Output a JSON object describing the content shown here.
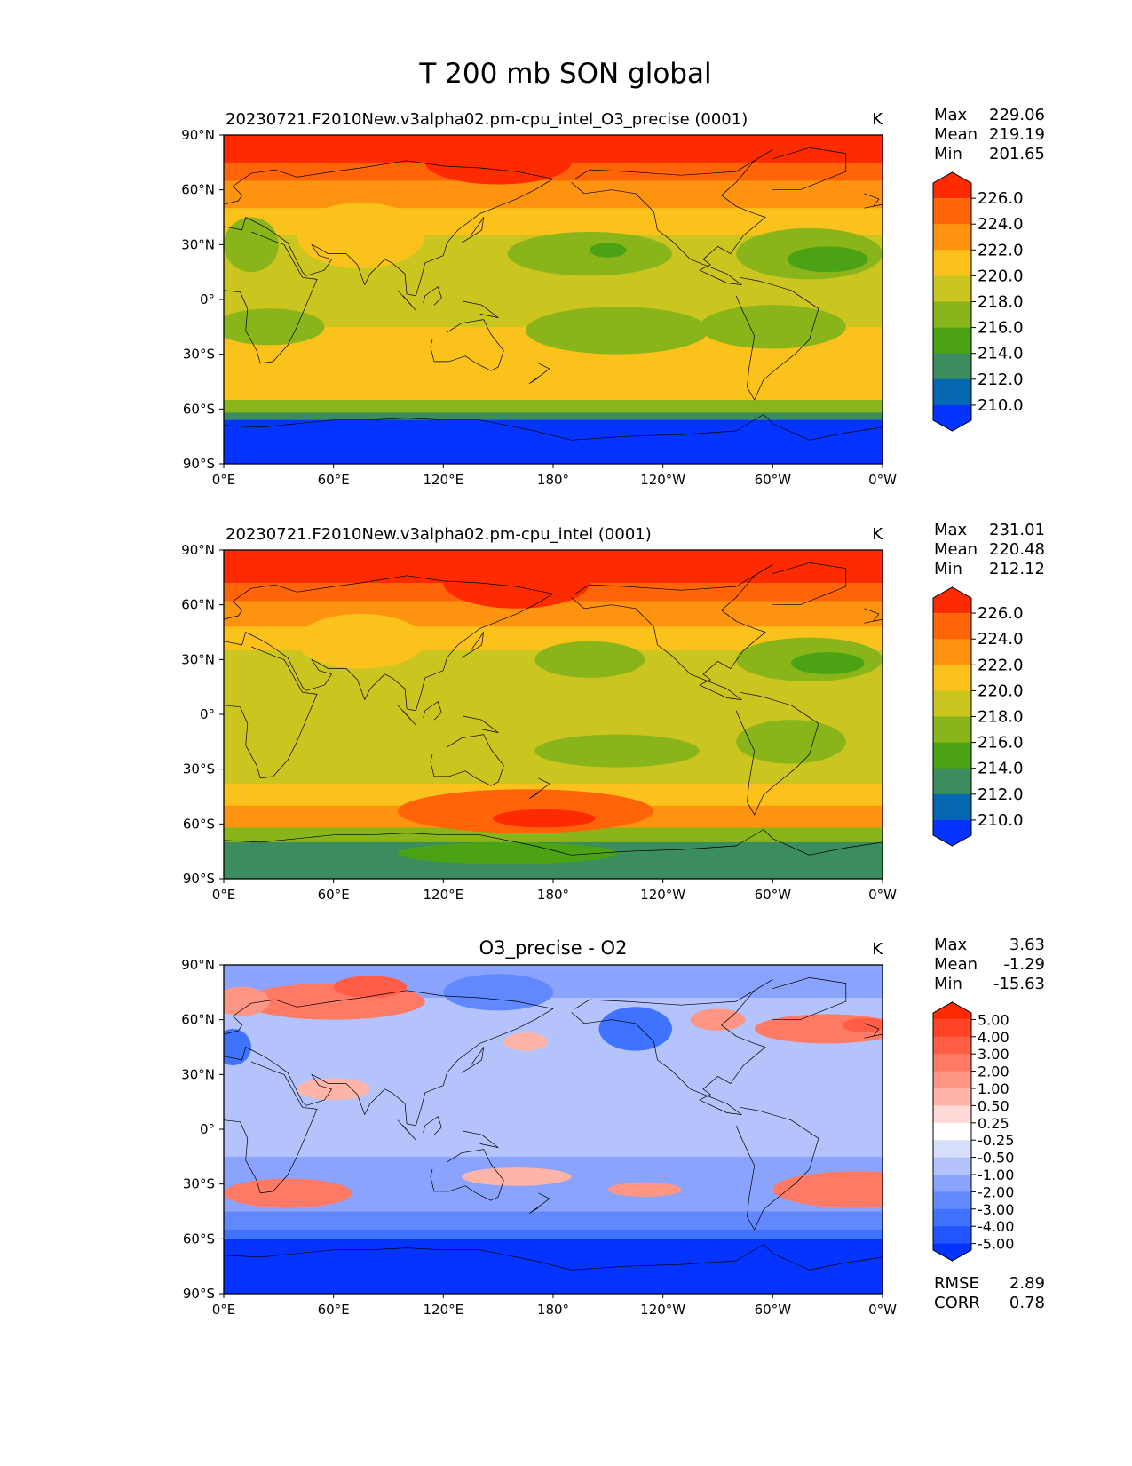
{
  "title": "T 200 mb SON global",
  "x_ticks": [
    "0°E",
    "60°E",
    "120°E",
    "180°",
    "120°W",
    "60°W",
    "0°W"
  ],
  "y_ticks": [
    "90°N",
    "60°N",
    "30°N",
    "0°",
    "30°S",
    "60°S",
    "90°S"
  ],
  "panels": [
    {
      "kind": "field",
      "title_left": "20230721.F2010New.v3alpha02.pm-cpu_intel_O3_precise (0001)",
      "title_center": "",
      "units": "K",
      "stats": [
        {
          "label": "Max",
          "value": "229.06"
        },
        {
          "label": "Mean",
          "value": "219.19"
        },
        {
          "label": "Min",
          "value": "201.65"
        }
      ],
      "colorbar_labels": [
        "226.0",
        "224.0",
        "222.0",
        "220.0",
        "218.0",
        "216.0",
        "214.0",
        "212.0",
        "210.0"
      ],
      "bands": [
        {
          "lat_max": 90,
          "lat_min": 75,
          "value": 227
        },
        {
          "lat_max": 75,
          "lat_min": 65,
          "value": 225
        },
        {
          "lat_max": 65,
          "lat_min": 50,
          "value": 223
        },
        {
          "lat_max": 50,
          "lat_min": 35,
          "value": 221
        },
        {
          "lat_max": 35,
          "lat_min": -15,
          "value": 219
        },
        {
          "lat_max": -15,
          "lat_min": -35,
          "value": 220
        },
        {
          "lat_max": -35,
          "lat_min": -55,
          "value": 221
        },
        {
          "lat_max": -55,
          "lat_min": -62,
          "value": 217
        },
        {
          "lat_max": -62,
          "lat_min": -66,
          "value": 213
        },
        {
          "lat_max": -66,
          "lat_min": -90,
          "value": 209
        }
      ],
      "blobs": [
        {
          "lon": 75,
          "lat": 35,
          "rx": 35,
          "ry": 18,
          "value": 221
        },
        {
          "lon": 150,
          "lat": 75,
          "rx": 40,
          "ry": 12,
          "value": 227
        },
        {
          "lon": 200,
          "lat": 25,
          "rx": 45,
          "ry": 12,
          "value": 217
        },
        {
          "lon": 210,
          "lat": 27,
          "rx": 10,
          "ry": 4,
          "value": 215
        },
        {
          "lon": 320,
          "lat": 25,
          "rx": 40,
          "ry": 14,
          "value": 217
        },
        {
          "lon": 330,
          "lat": 22,
          "rx": 22,
          "ry": 7,
          "value": 215
        },
        {
          "lon": 15,
          "lat": 30,
          "rx": 15,
          "ry": 15,
          "value": 217
        },
        {
          "lon": 215,
          "lat": -17,
          "rx": 50,
          "ry": 13,
          "value": 217
        },
        {
          "lon": 25,
          "lat": -15,
          "rx": 30,
          "ry": 10,
          "value": 217
        },
        {
          "lon": 300,
          "lat": -15,
          "rx": 40,
          "ry": 12,
          "value": 217
        }
      ]
    },
    {
      "kind": "field",
      "title_left": "20230721.F2010New.v3alpha02.pm-cpu_intel (0001)",
      "title_center": "",
      "units": "K",
      "stats": [
        {
          "label": "Max",
          "value": "231.01"
        },
        {
          "label": "Mean",
          "value": "220.48"
        },
        {
          "label": "Min",
          "value": "212.12"
        }
      ],
      "colorbar_labels": [
        "226.0",
        "224.0",
        "222.0",
        "220.0",
        "218.0",
        "216.0",
        "214.0",
        "212.0",
        "210.0"
      ],
      "bands": [
        {
          "lat_max": 90,
          "lat_min": 72,
          "value": 227
        },
        {
          "lat_max": 72,
          "lat_min": 62,
          "value": 225
        },
        {
          "lat_max": 62,
          "lat_min": 48,
          "value": 223
        },
        {
          "lat_max": 48,
          "lat_min": 35,
          "value": 221
        },
        {
          "lat_max": 35,
          "lat_min": -20,
          "value": 219
        },
        {
          "lat_max": -20,
          "lat_min": -38,
          "value": 219
        },
        {
          "lat_max": -38,
          "lat_min": -50,
          "value": 221
        },
        {
          "lat_max": -50,
          "lat_min": -62,
          "value": 223
        },
        {
          "lat_max": -62,
          "lat_min": -70,
          "value": 217
        },
        {
          "lat_max": -70,
          "lat_min": -90,
          "value": 213
        }
      ],
      "blobs": [
        {
          "lon": 75,
          "lat": 40,
          "rx": 35,
          "ry": 15,
          "value": 221
        },
        {
          "lon": 160,
          "lat": 72,
          "rx": 40,
          "ry": 14,
          "value": 227
        },
        {
          "lon": 200,
          "lat": 30,
          "rx": 30,
          "ry": 10,
          "value": 217
        },
        {
          "lon": 320,
          "lat": 30,
          "rx": 40,
          "ry": 12,
          "value": 217
        },
        {
          "lon": 330,
          "lat": 28,
          "rx": 20,
          "ry": 6,
          "value": 215
        },
        {
          "lon": 215,
          "lat": -20,
          "rx": 45,
          "ry": 9,
          "value": 217
        },
        {
          "lon": 165,
          "lat": -53,
          "rx": 70,
          "ry": 12,
          "value": 225
        },
        {
          "lon": 175,
          "lat": -57,
          "rx": 28,
          "ry": 5,
          "value": 227
        },
        {
          "lon": 155,
          "lat": -76,
          "rx": 60,
          "ry": 6,
          "value": 215
        },
        {
          "lon": 310,
          "lat": -15,
          "rx": 30,
          "ry": 12,
          "value": 217
        }
      ]
    },
    {
      "kind": "diff",
      "title_left": "",
      "title_center": "O3_precise - O2",
      "units": "K",
      "stats": [
        {
          "label": "Max",
          "value": "3.63"
        },
        {
          "label": "Mean",
          "value": "-1.29"
        },
        {
          "label": "Min",
          "value": "-15.63"
        }
      ],
      "colorbar_labels": [
        "5.00",
        "4.00",
        "3.00",
        "2.00",
        "1.00",
        "0.50",
        "0.25",
        "-0.25",
        "-0.50",
        "-1.00",
        "-2.00",
        "-3.00",
        "-4.00",
        "-5.00"
      ],
      "metrics": [
        {
          "label": "RMSE",
          "value": "2.89"
        },
        {
          "label": "CORR",
          "value": "0.78"
        }
      ],
      "bands": [
        {
          "lat_max": 90,
          "lat_min": 72,
          "value": -1.5
        },
        {
          "lat_max": 72,
          "lat_min": 45,
          "value": -1.0
        },
        {
          "lat_max": 45,
          "lat_min": 10,
          "value": -0.7
        },
        {
          "lat_max": 10,
          "lat_min": -15,
          "value": -0.8
        },
        {
          "lat_max": -15,
          "lat_min": -45,
          "value": -1.2
        },
        {
          "lat_max": -45,
          "lat_min": -55,
          "value": -2.5
        },
        {
          "lat_max": -55,
          "lat_min": -60,
          "value": -3.5
        },
        {
          "lat_max": -60,
          "lat_min": -90,
          "value": -6
        }
      ],
      "blobs": [
        {
          "lon": 60,
          "lat": 70,
          "rx": 50,
          "ry": 10,
          "value": 2.5
        },
        {
          "lon": 80,
          "lat": 78,
          "rx": 20,
          "ry": 6,
          "value": 3.5
        },
        {
          "lon": 10,
          "lat": 70,
          "rx": 15,
          "ry": 8,
          "value": 1.5
        },
        {
          "lon": 330,
          "lat": 55,
          "rx": 40,
          "ry": 8,
          "value": 2.5
        },
        {
          "lon": 350,
          "lat": 57,
          "rx": 12,
          "ry": 4,
          "value": 3.5
        },
        {
          "lon": 270,
          "lat": 60,
          "rx": 15,
          "ry": 6,
          "value": 1.5
        },
        {
          "lon": 5,
          "lat": 45,
          "rx": 10,
          "ry": 10,
          "value": -3.5
        },
        {
          "lon": 150,
          "lat": 75,
          "rx": 30,
          "ry": 10,
          "value": -2.5
        },
        {
          "lon": 225,
          "lat": 55,
          "rx": 20,
          "ry": 12,
          "value": -3.5
        },
        {
          "lon": 60,
          "lat": 22,
          "rx": 20,
          "ry": 6,
          "value": 0.6
        },
        {
          "lon": 165,
          "lat": 48,
          "rx": 12,
          "ry": 5,
          "value": 0.6
        },
        {
          "lon": 35,
          "lat": -35,
          "rx": 35,
          "ry": 8,
          "value": 2.5
        },
        {
          "lon": 345,
          "lat": -33,
          "rx": 45,
          "ry": 10,
          "value": 2.5
        },
        {
          "lon": 160,
          "lat": -26,
          "rx": 30,
          "ry": 5,
          "value": 0.6
        },
        {
          "lon": 230,
          "lat": -33,
          "rx": 20,
          "ry": 4,
          "value": 1.5
        }
      ]
    }
  ],
  "colors": {
    "field_levels": [
      210,
      212,
      214,
      216,
      218,
      220,
      222,
      224,
      226
    ],
    "field_palette": [
      "#0533ff",
      "#0668b0",
      "#3b8c5f",
      "#4aa214",
      "#8ab51a",
      "#cbc520",
      "#fcc21c",
      "#fd930f",
      "#ff6408",
      "#ff2b00"
    ],
    "diff_levels": [
      -5,
      -4,
      -3,
      -2,
      -1,
      -0.5,
      -0.25,
      0.25,
      0.5,
      1,
      2,
      3,
      4,
      5
    ],
    "diff_palette": [
      "#0533ff",
      "#2155ff",
      "#3e72ff",
      "#6188ff",
      "#8aa3fd",
      "#b4c3fb",
      "#d7dffc",
      "#ffffff",
      "#ffd9d5",
      "#ffb4a8",
      "#ff9585",
      "#ff7a64",
      "#ff5d45",
      "#ff4324",
      "#ff2b00"
    ],
    "coastline": "#000000"
  }
}
